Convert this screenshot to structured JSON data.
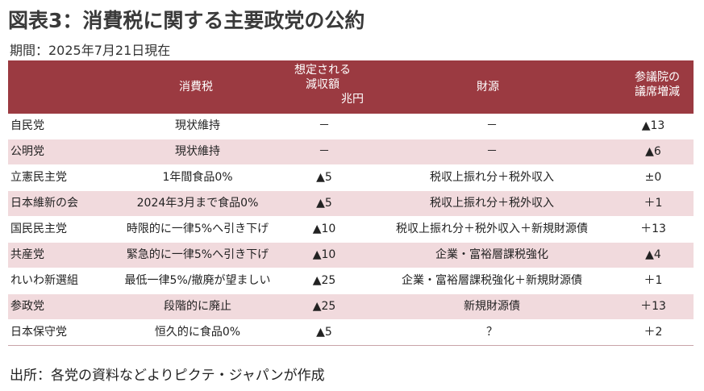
{
  "title": "図表3：消費税に関する主要政党の公約",
  "period": "期間：2025年7月21日現在",
  "table": {
    "headers": {
      "tax": "消費税",
      "scale_line1": "想定される",
      "scale_line2": "減収額",
      "scale_unit": "兆円",
      "funding": "財源",
      "seats_line1": "参議院の",
      "seats_line2": "議席増減"
    },
    "rows": [
      {
        "party": "自民党",
        "tax": "現状維持",
        "scale": "－",
        "funding": "－",
        "seats": "▲13"
      },
      {
        "party": "公明党",
        "tax": "現状維持",
        "scale": "－",
        "funding": "－",
        "seats": "▲6"
      },
      {
        "party": "立憲民主党",
        "tax": "1年間食品0%",
        "scale": "▲5",
        "funding": "税収上振れ分＋税外収入",
        "seats": "±0"
      },
      {
        "party": "日本維新の会",
        "tax": "2024年3月まで食品0%",
        "scale": "▲5",
        "funding": "税収上振れ分＋税外収入",
        "seats": "＋1"
      },
      {
        "party": "国民民主党",
        "tax": "時限的に一律5%へ引き下げ",
        "scale": "▲10",
        "funding": "税収上振れ分＋税外収入＋新規財源債",
        "seats": "＋13"
      },
      {
        "party": "共産党",
        "tax": "緊急的に一律5%へ引き下げ",
        "scale": "▲10",
        "funding": "企業・富裕層課税強化",
        "seats": "▲4"
      },
      {
        "party": "れいわ新選組",
        "tax": "最低一律5%/撤廃が望ましい",
        "scale": "▲25",
        "funding": "企業・富裕層課税強化＋新規財源債",
        "seats": "＋1"
      },
      {
        "party": "参政党",
        "tax": "段階的に廃止",
        "scale": "▲25",
        "funding": "新規財源債",
        "seats": "＋13"
      },
      {
        "party": "日本保守党",
        "tax": "恒久的に食品0%",
        "scale": "▲5",
        "funding": "？",
        "seats": "＋2"
      }
    ]
  },
  "source": "出所：各党の資料などよりピクテ・ジャパンが作成",
  "colors": {
    "header_bg": "#9b3a41",
    "alt_row_bg": "#f1dadd"
  }
}
